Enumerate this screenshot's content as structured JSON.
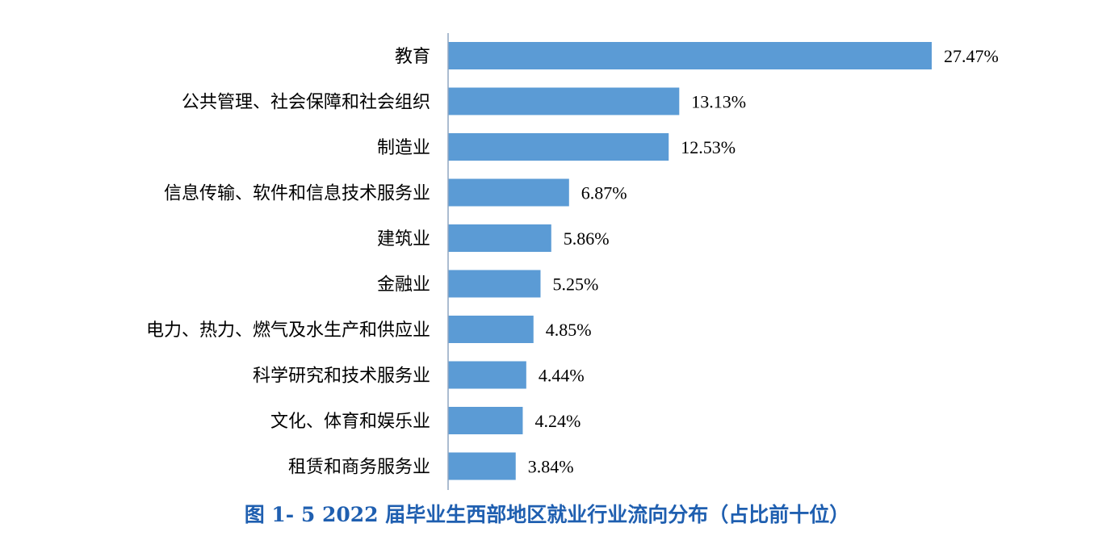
{
  "caption": "图 1- 5  2022 届毕业生西部地区就业行业流向分布（占比前十位）",
  "colors": {
    "bar": "#5b9bd5",
    "axis": "#8fa6c1",
    "caption": "#1f5fb0"
  },
  "chart_data": {
    "type": "bar",
    "orientation": "horizontal",
    "value_format": "percent",
    "categories": [
      "教育",
      "公共管理、社会保障和社会组织",
      "制造业",
      "信息传输、软件和信息技术服务业",
      "建筑业",
      "金融业",
      "电力、热力、燃气及水生产和供应业",
      "科学研究和技术服务业",
      "文化、体育和娱乐业",
      "租赁和商务服务业"
    ],
    "values": [
      27.47,
      13.13,
      12.53,
      6.87,
      5.86,
      5.25,
      4.85,
      4.44,
      4.24,
      3.84
    ],
    "labels": [
      "27.47%",
      "13.13%",
      "12.53%",
      "6.87%",
      "5.86%",
      "5.25%",
      "4.85%",
      "4.44%",
      "4.24%",
      "3.84%"
    ],
    "title": "",
    "xlabel": "",
    "ylabel": "",
    "grid": false,
    "legend": "none"
  }
}
